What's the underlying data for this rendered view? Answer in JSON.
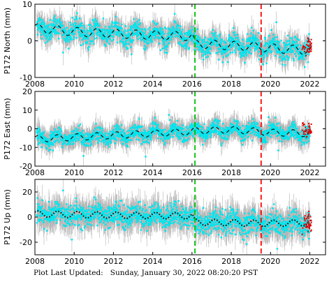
{
  "footer": {
    "label": "Plot Last Updated:",
    "timestamp": "Sunday, January 30, 2022 08:20:20 PST"
  },
  "colors": {
    "points": "#00e5ee",
    "error_bars": "#b4b4b4",
    "recent_points": "#dd0000",
    "model": "#000000",
    "green_marker": "#00c000",
    "red_marker": "#ff0000"
  },
  "chart_data": [
    {
      "type": "scatter",
      "title": "",
      "xlabel": "",
      "ylabel": "P172 North (mm)",
      "xlim": [
        2008,
        2022.8
      ],
      "ylim": [
        -10,
        10
      ],
      "yticks": [
        -10,
        0,
        10
      ],
      "xticks": [
        2008,
        2010,
        2012,
        2014,
        2016,
        2018,
        2020,
        2022
      ],
      "xtick_labels_shown": true,
      "vertical_lines": [
        {
          "x": 2016.15,
          "color": "green",
          "style": "dashed"
        },
        {
          "x": 2019.52,
          "color": "red",
          "style": "dashed"
        }
      ],
      "series": [
        {
          "type": "model",
          "x": [
            2008,
            2009,
            2010,
            2011,
            2012,
            2013,
            2014,
            2015,
            2016,
            2016.15,
            2017,
            2018,
            2019,
            2019.52,
            2020,
            2021,
            2022
          ],
          "y": [
            3.5,
            3.0,
            2.5,
            2.2,
            2.0,
            1.8,
            1.6,
            1.4,
            1.2,
            -0.8,
            -1.0,
            -1.3,
            -1.5,
            -1.7,
            -2.0,
            -2.3,
            -2.6
          ],
          "seasonal_amplitude": 1.2,
          "style": "dashed"
        },
        {
          "type": "daily_positions",
          "x_range": [
            2008.1,
            2022.0
          ],
          "scatter_sd": 1.4,
          "error_bar": 2.5
        },
        {
          "type": "recent_positions",
          "x_range": [
            2021.6,
            2022.08
          ],
          "y_mean": -1.8,
          "scatter_sd": 1.2
        }
      ]
    },
    {
      "type": "scatter",
      "title": "",
      "xlabel": "",
      "ylabel": "P172 East (mm)",
      "xlim": [
        2008,
        2022.8
      ],
      "ylim": [
        -20,
        20
      ],
      "yticks": [
        -20,
        -10,
        0,
        10,
        20
      ],
      "xticks": [
        2008,
        2010,
        2012,
        2014,
        2016,
        2018,
        2020,
        2022
      ],
      "xtick_labels_shown": true,
      "vertical_lines": [
        {
          "x": 2016.15,
          "color": "green",
          "style": "dashed"
        },
        {
          "x": 2019.52,
          "color": "red",
          "style": "dashed"
        }
      ],
      "series": [
        {
          "type": "model",
          "x": [
            2008,
            2010,
            2012,
            2014,
            2016,
            2016.15,
            2018,
            2019.52,
            2020,
            2022
          ],
          "y": [
            -5.5,
            -4.5,
            -3.5,
            -2.5,
            -1.5,
            -1.0,
            -0.5,
            -1.5,
            -2.0,
            -2.5
          ],
          "seasonal_amplitude": 1.8,
          "style": "dashed"
        },
        {
          "type": "daily_positions",
          "x_range": [
            2008.1,
            2022.0
          ],
          "scatter_sd": 2.0,
          "error_bar": 4.5
        },
        {
          "type": "recent_positions",
          "x_range": [
            2021.6,
            2022.08
          ],
          "y_mean": -1.0,
          "scatter_sd": 1.8
        }
      ]
    },
    {
      "type": "scatter",
      "title": "",
      "xlabel": "",
      "ylabel": "P172 Up (mm)",
      "xlim": [
        2008,
        2022.8
      ],
      "ylim": [
        -30,
        30
      ],
      "yticks": [
        -20,
        0,
        20
      ],
      "xticks": [
        2008,
        2010,
        2012,
        2014,
        2016,
        2018,
        2020,
        2022
      ],
      "xtick_labels_shown": true,
      "vertical_lines": [
        {
          "x": 2016.15,
          "color": "green",
          "style": "dashed"
        },
        {
          "x": 2019.52,
          "color": "red",
          "style": "dashed"
        }
      ],
      "series": [
        {
          "type": "model",
          "x": [
            2008,
            2010,
            2012,
            2014,
            2016,
            2016.15,
            2018,
            2019.52,
            2020,
            2022
          ],
          "y": [
            2.5,
            2.0,
            1.5,
            1.2,
            1.0,
            -4.0,
            -4.5,
            -5.0,
            -5.0,
            -4.5
          ],
          "seasonal_amplitude": 2.5,
          "style": "dotted"
        },
        {
          "type": "daily_positions",
          "x_range": [
            2008.1,
            2022.0
          ],
          "scatter_sd": 4.5,
          "error_bar": 9.0
        },
        {
          "type": "recent_positions",
          "x_range": [
            2021.6,
            2022.08
          ],
          "y_mean": -4.0,
          "scatter_sd": 4.0
        }
      ]
    }
  ]
}
